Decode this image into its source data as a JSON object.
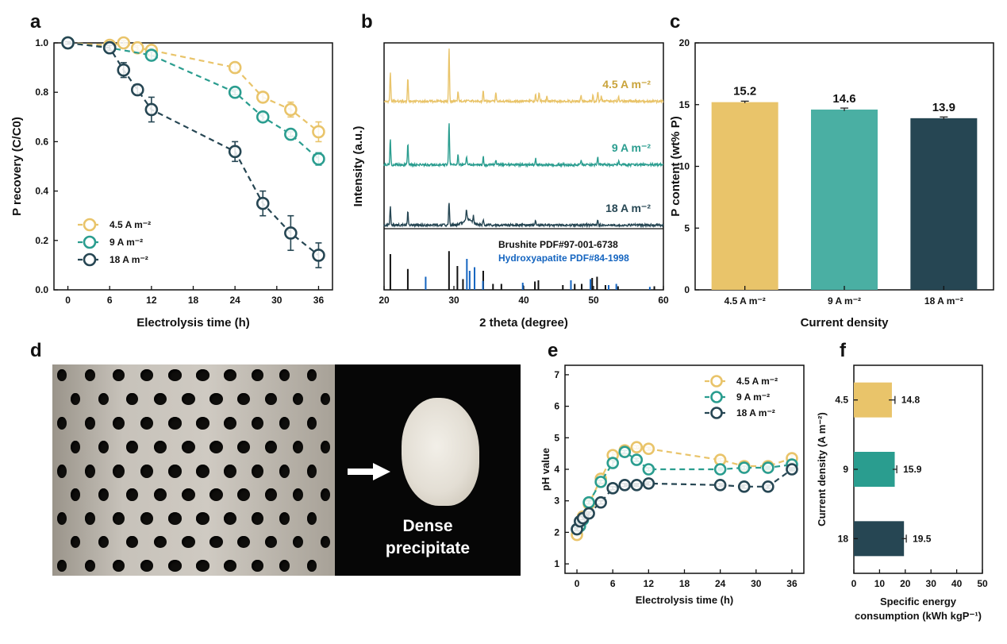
{
  "panels": {
    "a": "a",
    "b": "b",
    "c": "c",
    "d": "d",
    "e": "e",
    "f": "f"
  },
  "colors": {
    "c45": "#E9C46A",
    "c9": "#2A9D8F",
    "c18": "#264653",
    "blue": "#1565C0",
    "black": "#111111"
  },
  "photo": {
    "caption_line1": "Dense",
    "caption_line2": "precipitate"
  },
  "chart_data": [
    {
      "id": "a",
      "type": "line",
      "ylabel": "P recovery (C/C0)",
      "xlabel": "Electrolysis time (h)",
      "xlim": [
        -2,
        38
      ],
      "ylim": [
        0,
        1.0
      ],
      "xticks": [
        0,
        6,
        12,
        18,
        24,
        30,
        36
      ],
      "yticks": [
        0.0,
        0.2,
        0.4,
        0.6,
        0.8,
        1.0
      ],
      "legend_position": "bottom-left",
      "series": [
        {
          "name": "4.5 A m⁻²",
          "color": "#E9C46A",
          "x": [
            0,
            6,
            8,
            10,
            12,
            24,
            28,
            32,
            36
          ],
          "y": [
            1.0,
            0.99,
            1.0,
            0.98,
            0.97,
            0.9,
            0.78,
            0.73,
            0.64
          ],
          "err": [
            0.005,
            0.01,
            0.01,
            0.01,
            0.01,
            0.02,
            0.015,
            0.03,
            0.04
          ]
        },
        {
          "name": "9 A m⁻²",
          "color": "#2A9D8F",
          "x": [
            0,
            6,
            12,
            24,
            28,
            32,
            36
          ],
          "y": [
            1.0,
            0.98,
            0.95,
            0.8,
            0.7,
            0.63,
            0.53
          ],
          "err": [
            0.005,
            0.01,
            0.015,
            0.01,
            0.015,
            0.01,
            0.025
          ]
        },
        {
          "name": "18 A m⁻²",
          "color": "#264653",
          "x": [
            0,
            6,
            8,
            10,
            12,
            24,
            28,
            32,
            36
          ],
          "y": [
            1.0,
            0.98,
            0.89,
            0.81,
            0.73,
            0.56,
            0.35,
            0.23,
            0.14
          ],
          "err": [
            0.005,
            0.01,
            0.03,
            0.02,
            0.05,
            0.04,
            0.05,
            0.07,
            0.05
          ]
        }
      ]
    },
    {
      "id": "b",
      "type": "line",
      "ylabel": "Intensity (a.u.)",
      "xlabel": "2 theta (degree)",
      "xlim": [
        20,
        60
      ],
      "xticks": [
        20,
        30,
        40,
        50,
        60
      ],
      "traces": [
        {
          "name": "4.5 A m⁻²",
          "color": "#E9C46A",
          "peaks": [
            [
              20.9,
              0.35
            ],
            [
              23.4,
              0.28
            ],
            [
              29.3,
              0.64
            ],
            [
              30.6,
              0.12
            ],
            [
              34.2,
              0.14
            ],
            [
              36.0,
              0.1
            ],
            [
              41.7,
              0.08
            ],
            [
              42.2,
              0.1
            ],
            [
              43.3,
              0.06
            ],
            [
              48.2,
              0.07
            ],
            [
              49.9,
              0.08
            ],
            [
              50.6,
              0.12
            ],
            [
              51.1,
              0.06
            ],
            [
              53.6,
              0.05
            ]
          ]
        },
        {
          "name": "9 A m⁻²",
          "color": "#2A9D8F",
          "peaks": [
            [
              20.9,
              0.3
            ],
            [
              23.4,
              0.26
            ],
            [
              29.3,
              0.5
            ],
            [
              30.6,
              0.12
            ],
            [
              31.8,
              0.1
            ],
            [
              34.2,
              0.1
            ],
            [
              36.0,
              0.06
            ],
            [
              41.7,
              0.08
            ],
            [
              48.2,
              0.05
            ],
            [
              50.6,
              0.1
            ],
            [
              53.6,
              0.04
            ]
          ]
        },
        {
          "name": "18 A m⁻²",
          "color": "#264653",
          "peaks": [
            [
              20.9,
              0.22
            ],
            [
              23.4,
              0.16
            ],
            [
              29.3,
              0.28
            ],
            [
              31.8,
              0.12
            ],
            [
              32.8,
              0.08
            ],
            [
              34.2,
              0.06
            ],
            [
              41.7,
              0.05
            ],
            [
              50.6,
              0.07
            ]
          ]
        }
      ],
      "references": [
        {
          "name": "Brushite PDF#97-001-6738",
          "color": "#111111",
          "lines": [
            [
              20.9,
              0.6
            ],
            [
              23.4,
              0.35
            ],
            [
              29.3,
              0.65
            ],
            [
              30.5,
              0.4
            ],
            [
              31.3,
              0.18
            ],
            [
              34.2,
              0.32
            ],
            [
              35.6,
              0.1
            ],
            [
              36.8,
              0.1
            ],
            [
              39.9,
              0.08
            ],
            [
              41.6,
              0.14
            ],
            [
              42.1,
              0.16
            ],
            [
              45.6,
              0.08
            ],
            [
              47.3,
              0.1
            ],
            [
              48.3,
              0.1
            ],
            [
              49.8,
              0.2
            ],
            [
              50.5,
              0.22
            ],
            [
              51.7,
              0.08
            ],
            [
              53.5,
              0.06
            ],
            [
              58.7,
              0.06
            ]
          ]
        },
        {
          "name": "Hydroxyapatite PDF#84-1998",
          "color": "#1565C0",
          "lines": [
            [
              25.9,
              0.22
            ],
            [
              31.8,
              0.52
            ],
            [
              32.2,
              0.32
            ],
            [
              32.9,
              0.38
            ],
            [
              34.1,
              0.15
            ],
            [
              39.8,
              0.12
            ],
            [
              46.7,
              0.16
            ],
            [
              49.5,
              0.18
            ],
            [
              52.1,
              0.08
            ],
            [
              53.2,
              0.1
            ],
            [
              58.0,
              0.05
            ]
          ]
        }
      ]
    },
    {
      "id": "c",
      "type": "bar",
      "ylabel": "P content (wt% P)",
      "xlabel": "Current density",
      "ylim": [
        0,
        20
      ],
      "yticks": [
        0,
        5,
        10,
        15,
        20
      ],
      "categories": [
        "4.5 A m⁻²",
        "9 A m⁻²",
        "18 A m⁻²"
      ],
      "values": [
        15.2,
        14.6,
        13.9
      ],
      "value_labels": [
        "15.2",
        "14.6",
        "13.9"
      ],
      "err": [
        0.08,
        0.12,
        0.1
      ],
      "colors": [
        "#E9C46A",
        "#4AAFA3",
        "#264653"
      ]
    },
    {
      "id": "e",
      "type": "line",
      "ylabel": "pH value",
      "xlabel": "Electrolysis time (h)",
      "xlim": [
        -2,
        38
      ],
      "ylim": [
        0.7,
        7.3
      ],
      "xticks": [
        0,
        6,
        12,
        18,
        24,
        30,
        36
      ],
      "yticks": [
        1,
        2,
        3,
        4,
        5,
        6,
        7
      ],
      "legend_position": "top-right",
      "series": [
        {
          "name": "4.5 A m⁻²",
          "color": "#E9C46A",
          "x": [
            0,
            0.5,
            1,
            2,
            4,
            6,
            8,
            10,
            12,
            24,
            28,
            32,
            36
          ],
          "y": [
            1.92,
            2.2,
            2.5,
            2.9,
            3.7,
            4.45,
            4.6,
            4.7,
            4.65,
            4.3,
            4.1,
            4.1,
            4.35
          ],
          "err": [
            0.05,
            0.05,
            0.05,
            0.05,
            0.1,
            0.1,
            0.1,
            0.05,
            0.05,
            0.05,
            0.05,
            0.05,
            0.1
          ]
        },
        {
          "name": "9 A m⁻²",
          "color": "#2A9D8F",
          "x": [
            0,
            0.5,
            1,
            2,
            4,
            6,
            8,
            10,
            12,
            24,
            28,
            32,
            36
          ],
          "y": [
            2.1,
            2.2,
            2.4,
            2.95,
            3.6,
            4.2,
            4.55,
            4.3,
            4.0,
            4.0,
            4.05,
            4.05,
            4.15
          ],
          "err": [
            0.05,
            0.05,
            0.05,
            0.05,
            0.05,
            0.1,
            0.05,
            0.05,
            0.05,
            0.05,
            0.05,
            0.05,
            0.05
          ]
        },
        {
          "name": "18 A m⁻²",
          "color": "#264653",
          "x": [
            0,
            0.5,
            1,
            2,
            4,
            6,
            8,
            10,
            12,
            24,
            28,
            32,
            36
          ],
          "y": [
            2.1,
            2.35,
            2.45,
            2.6,
            2.95,
            3.4,
            3.5,
            3.5,
            3.55,
            3.5,
            3.45,
            3.45,
            4.0
          ],
          "err": [
            0.05,
            0.05,
            0.05,
            0.05,
            0.05,
            0.05,
            0.05,
            0.05,
            0.05,
            0.05,
            0.05,
            0.05,
            0.05
          ]
        }
      ]
    },
    {
      "id": "f",
      "type": "bar",
      "orientation": "horizontal",
      "ylabel": "Current density (A m⁻²)",
      "xlabel_line1": "Specific energy",
      "xlabel_line2": "consumption (kWh kgP⁻¹)",
      "xlim": [
        0,
        50
      ],
      "xticks": [
        0,
        10,
        20,
        30,
        40,
        50
      ],
      "categories": [
        "4.5",
        "9",
        "18"
      ],
      "values": [
        14.8,
        15.9,
        19.5
      ],
      "value_labels": [
        "14.8",
        "15.9",
        "19.5"
      ],
      "err": [
        1.2,
        0.8,
        0.9
      ],
      "colors": [
        "#E9C46A",
        "#2A9D8F",
        "#264653"
      ]
    }
  ]
}
